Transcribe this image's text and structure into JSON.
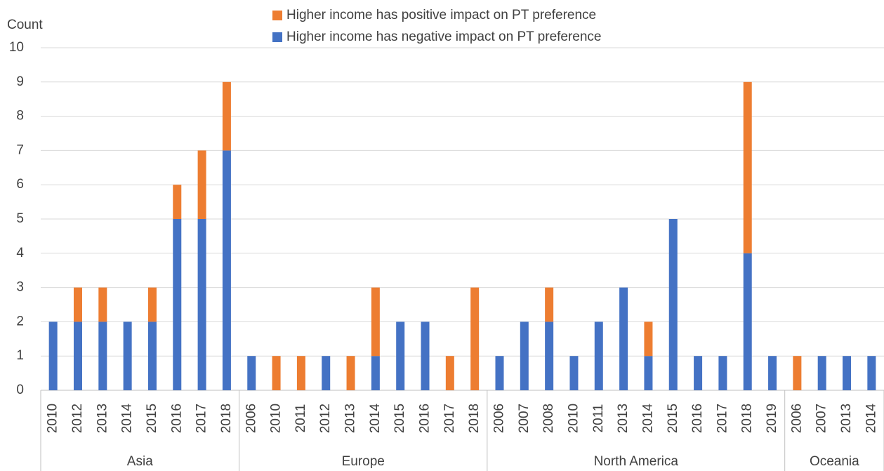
{
  "chart_data": {
    "type": "stacked_bar",
    "y_label": "Count",
    "groups": [
      {
        "name": "Asia",
        "categories": [
          "2010",
          "2012",
          "2013",
          "2014",
          "2015",
          "2016",
          "2017",
          "2018"
        ]
      },
      {
        "name": "Europe",
        "categories": [
          "2006",
          "2010",
          "2011",
          "2012",
          "2013",
          "2014",
          "2015",
          "2016",
          "2017",
          "2018"
        ]
      },
      {
        "name": "North America",
        "categories": [
          "2006",
          "2007",
          "2008",
          "2010",
          "2011",
          "2013",
          "2014",
          "2015",
          "2016",
          "2017",
          "2018",
          "2019"
        ]
      },
      {
        "name": "Oceania",
        "categories": [
          "2006",
          "2007",
          "2013",
          "2014"
        ]
      }
    ],
    "series": [
      {
        "name": "Higher income has negative impact on PT preference",
        "color": "#4472c4",
        "values": [
          2,
          2,
          2,
          2,
          2,
          5,
          5,
          7,
          1,
          0,
          0,
          1,
          0,
          1,
          2,
          2,
          0,
          0,
          1,
          2,
          2,
          1,
          2,
          3,
          1,
          5,
          1,
          1,
          4,
          1,
          0,
          1,
          1,
          1
        ]
      },
      {
        "name": "Higher income has positive impact on PT preference",
        "color": "#ed7d31",
        "values": [
          0,
          1,
          1,
          0,
          1,
          1,
          2,
          2,
          0,
          1,
          1,
          0,
          1,
          2,
          0,
          0,
          1,
          3,
          0,
          0,
          1,
          0,
          0,
          0,
          1,
          0,
          0,
          0,
          5,
          0,
          1,
          0,
          0,
          0
        ]
      }
    ],
    "ylim": [
      0,
      10
    ],
    "yticks": [
      0,
      1,
      2,
      3,
      4,
      5,
      6,
      7,
      8,
      9,
      10
    ],
    "grid": true
  }
}
